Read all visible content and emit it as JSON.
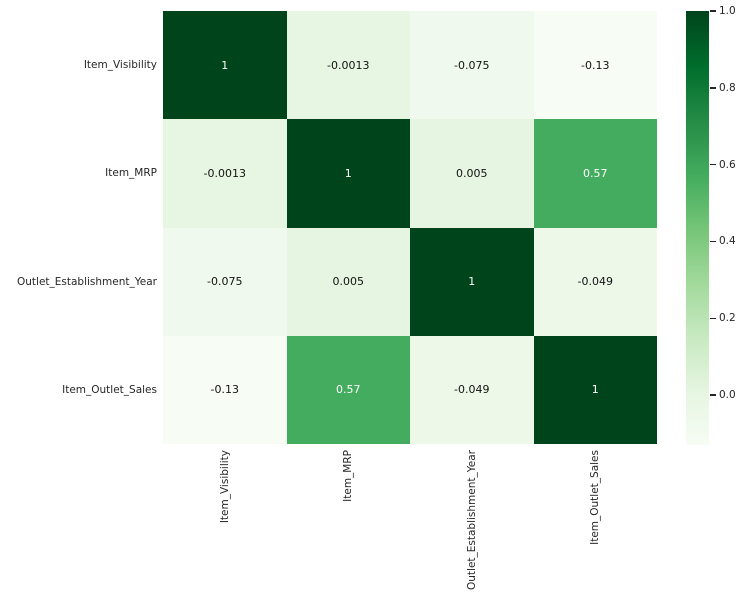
{
  "chart_data": {
    "type": "heatmap",
    "title": "",
    "xlabel": "",
    "ylabel": "",
    "categories": [
      "Item_Visibility",
      "Item_MRP",
      "Outlet_Establishment_Year",
      "Item_Outlet_Sales"
    ],
    "matrix": [
      [
        1,
        -0.0013,
        -0.075,
        -0.13
      ],
      [
        -0.0013,
        1,
        0.005,
        0.57
      ],
      [
        -0.075,
        0.005,
        1,
        -0.049
      ],
      [
        -0.13,
        0.57,
        -0.049,
        1
      ]
    ],
    "annotations": [
      [
        "1",
        "-0.0013",
        "-0.075",
        "-0.13"
      ],
      [
        "-0.0013",
        "1",
        "0.005",
        "0.57"
      ],
      [
        "-0.075",
        "0.005",
        "1",
        "-0.049"
      ],
      [
        "-0.13",
        "0.57",
        "-0.049",
        "1"
      ]
    ],
    "vmin": -0.13,
    "vmax": 1.0,
    "grid": false,
    "colormap": {
      "name": "Greens",
      "stops": [
        "#f7fcf5",
        "#e5f5e0",
        "#c7e9c0",
        "#a1d99b",
        "#74c476",
        "#41ab5d",
        "#238b45",
        "#006d2c",
        "#00441b"
      ]
    },
    "annotation_text_colors": {
      "on_dark_cell": "#ffffff",
      "on_light_cell": "#131313"
    },
    "tick_color": "#262626",
    "colorbar": {
      "position": "right",
      "tick_values": [
        1.0,
        0.8,
        0.6,
        0.4,
        0.2,
        0.0
      ],
      "tick_labels": [
        "1.0",
        "0.8",
        "0.6",
        "0.4",
        "0.2",
        "0.0"
      ]
    }
  }
}
